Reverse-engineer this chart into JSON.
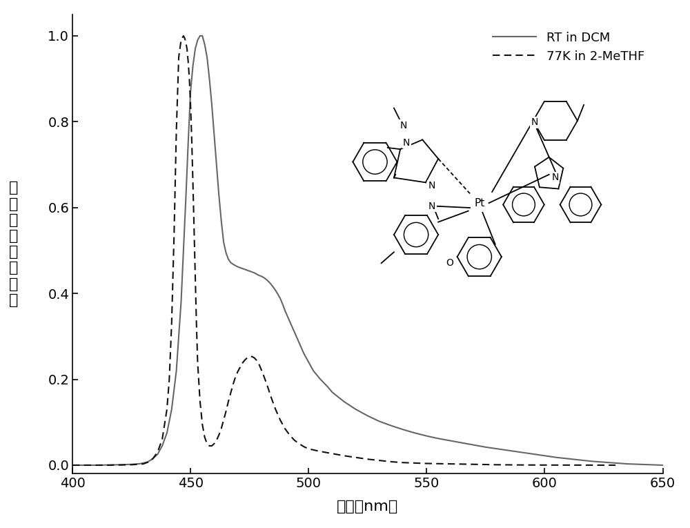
{
  "title": "",
  "xlabel": "波长（nm）",
  "ylabel_chars": [
    "归",
    "一",
    "化",
    "的",
    "发",
    "光",
    "强",
    "度"
  ],
  "xlim": [
    400,
    650
  ],
  "ylim": [
    -0.02,
    1.05
  ],
  "xticks": [
    400,
    450,
    500,
    550,
    600,
    650
  ],
  "yticks": [
    0.0,
    0.2,
    0.4,
    0.6,
    0.8,
    1.0
  ],
  "legend_labels": [
    "RT in DCM",
    "77K in 2-MeTHF"
  ],
  "line1_color": "#666666",
  "line2_color": "#111111",
  "background_color": "#ffffff",
  "solid_line_x": [
    400,
    410,
    420,
    425,
    428,
    430,
    432,
    434,
    436,
    438,
    440,
    442,
    444,
    446,
    448,
    449,
    450,
    451,
    452,
    453,
    454,
    455,
    456,
    457,
    458,
    459,
    460,
    461,
    462,
    463,
    464,
    465,
    466,
    467,
    468,
    469,
    470,
    471,
    472,
    473,
    474,
    475,
    476,
    477,
    478,
    479,
    480,
    481,
    482,
    483,
    484,
    485,
    486,
    487,
    488,
    489,
    490,
    492,
    494,
    496,
    498,
    500,
    502,
    505,
    508,
    510,
    515,
    520,
    525,
    530,
    535,
    540,
    545,
    550,
    555,
    560,
    565,
    570,
    575,
    580,
    585,
    590,
    595,
    600,
    605,
    610,
    615,
    620,
    625,
    630,
    635,
    640,
    645,
    650
  ],
  "solid_line_y": [
    0.0,
    0.0,
    0.001,
    0.002,
    0.003,
    0.005,
    0.008,
    0.015,
    0.025,
    0.045,
    0.075,
    0.13,
    0.22,
    0.38,
    0.62,
    0.75,
    0.87,
    0.93,
    0.97,
    0.99,
    1.0,
    1.0,
    0.98,
    0.95,
    0.9,
    0.84,
    0.77,
    0.7,
    0.63,
    0.57,
    0.52,
    0.495,
    0.48,
    0.472,
    0.468,
    0.465,
    0.462,
    0.46,
    0.458,
    0.456,
    0.454,
    0.452,
    0.45,
    0.448,
    0.445,
    0.442,
    0.44,
    0.437,
    0.433,
    0.428,
    0.422,
    0.415,
    0.407,
    0.398,
    0.388,
    0.375,
    0.36,
    0.335,
    0.31,
    0.285,
    0.26,
    0.24,
    0.22,
    0.2,
    0.183,
    0.17,
    0.148,
    0.13,
    0.115,
    0.102,
    0.092,
    0.083,
    0.075,
    0.068,
    0.062,
    0.057,
    0.052,
    0.047,
    0.042,
    0.038,
    0.034,
    0.03,
    0.026,
    0.022,
    0.018,
    0.015,
    0.012,
    0.009,
    0.007,
    0.005,
    0.003,
    0.002,
    0.001,
    0.0
  ],
  "dashed_line_x": [
    400,
    415,
    425,
    430,
    432,
    434,
    436,
    438,
    440,
    441,
    442,
    443,
    444,
    445,
    446,
    447,
    447.5,
    448,
    448.5,
    449,
    449.5,
    450,
    450.5,
    451,
    451.5,
    452,
    452.5,
    453,
    454,
    455,
    456,
    457,
    458,
    459,
    460,
    461,
    462,
    463,
    464,
    465,
    466,
    467,
    468,
    469,
    470,
    471,
    472,
    473,
    474,
    475,
    476,
    477,
    478,
    479,
    480,
    481,
    482,
    483,
    484,
    486,
    488,
    490,
    492,
    494,
    496,
    498,
    500,
    505,
    510,
    515,
    520,
    525,
    530,
    535,
    540,
    545,
    550,
    555,
    560,
    565,
    570,
    575,
    580,
    590,
    600,
    610,
    620,
    630
  ],
  "dashed_line_y": [
    0.0,
    0.0,
    0.001,
    0.003,
    0.007,
    0.015,
    0.03,
    0.06,
    0.13,
    0.2,
    0.33,
    0.53,
    0.78,
    0.95,
    0.99,
    1.0,
    0.995,
    0.985,
    0.97,
    0.94,
    0.9,
    0.84,
    0.76,
    0.66,
    0.55,
    0.44,
    0.33,
    0.24,
    0.15,
    0.095,
    0.065,
    0.05,
    0.045,
    0.045,
    0.05,
    0.058,
    0.07,
    0.085,
    0.105,
    0.125,
    0.148,
    0.168,
    0.188,
    0.205,
    0.218,
    0.228,
    0.238,
    0.245,
    0.25,
    0.253,
    0.253,
    0.25,
    0.244,
    0.235,
    0.222,
    0.208,
    0.193,
    0.177,
    0.16,
    0.13,
    0.105,
    0.085,
    0.07,
    0.058,
    0.05,
    0.043,
    0.038,
    0.032,
    0.027,
    0.022,
    0.018,
    0.014,
    0.011,
    0.008,
    0.006,
    0.005,
    0.004,
    0.0035,
    0.003,
    0.0025,
    0.002,
    0.0015,
    0.001,
    0.0005,
    0.0003,
    0.0002,
    0.0001,
    0.0
  ]
}
